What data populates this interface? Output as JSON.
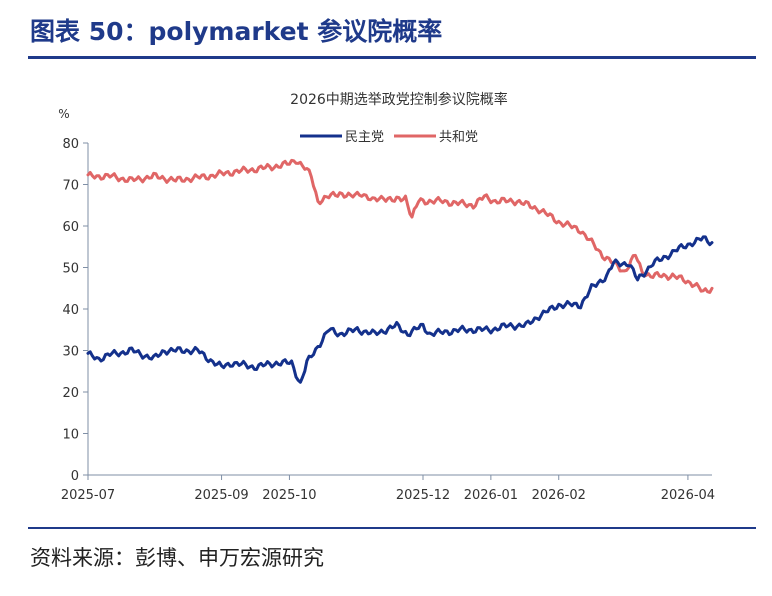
{
  "figure_title": "图表 50：polymarket 参议院概率",
  "source": "资料来源：彭博、申万宏源研究",
  "colors": {
    "democrat": "#14318c",
    "republican": "#e06666",
    "accent": "#1f3a8a",
    "axis": "#7f8fa6"
  },
  "chart_data": {
    "type": "line",
    "title": "2026中期选举政党控制参议院概率",
    "ylabel": "%",
    "ylim": [
      0,
      80
    ],
    "yticks": [
      0,
      10,
      20,
      30,
      40,
      50,
      60,
      70,
      80
    ],
    "xlim": [
      "2025-07-01",
      "2026-04-12"
    ],
    "xticks": [
      "2025-07",
      "2025-09",
      "2025-10",
      "2025-12",
      "2026-01",
      "2026-02",
      "2026-04"
    ],
    "xtick_dates": [
      "2025-07-01",
      "2025-08-31",
      "2025-10-01",
      "2025-12-01",
      "2026-01-01",
      "2026-02-01",
      "2026-04-01"
    ],
    "legend_position": "top-center",
    "grid": false,
    "series": [
      {
        "name": "民主党",
        "color": "#14318c",
        "points": [
          [
            "2025-07-01",
            29
          ],
          [
            "2025-07-06",
            28
          ],
          [
            "2025-07-11",
            29
          ],
          [
            "2025-07-21",
            30
          ],
          [
            "2025-07-31",
            28
          ],
          [
            "2025-08-05",
            30
          ],
          [
            "2025-08-20",
            30
          ],
          [
            "2025-08-25",
            28
          ],
          [
            "2025-08-31",
            26
          ],
          [
            "2025-09-05",
            27
          ],
          [
            "2025-09-15",
            26
          ],
          [
            "2025-09-25",
            27
          ],
          [
            "2025-10-02",
            27
          ],
          [
            "2025-10-06",
            22
          ],
          [
            "2025-10-09",
            27
          ],
          [
            "2025-10-14",
            31
          ],
          [
            "2025-10-19",
            35
          ],
          [
            "2025-10-24",
            34
          ],
          [
            "2025-11-01",
            35
          ],
          [
            "2025-11-09",
            34
          ],
          [
            "2025-11-19",
            36
          ],
          [
            "2025-11-24",
            34
          ],
          [
            "2025-12-01",
            36
          ],
          [
            "2025-12-04",
            34
          ],
          [
            "2025-12-19",
            35
          ],
          [
            "2026-01-01",
            35
          ],
          [
            "2026-01-09",
            36
          ],
          [
            "2026-01-17",
            36
          ],
          [
            "2026-01-22",
            38
          ],
          [
            "2026-02-01",
            41
          ],
          [
            "2026-02-11",
            41
          ],
          [
            "2026-02-16",
            45
          ],
          [
            "2026-02-23",
            48
          ],
          [
            "2026-02-26",
            51
          ],
          [
            "2026-03-05",
            51
          ],
          [
            "2026-03-09",
            47
          ],
          [
            "2026-03-16",
            51
          ],
          [
            "2026-03-20",
            52
          ],
          [
            "2026-03-26",
            54
          ],
          [
            "2026-04-03",
            56
          ],
          [
            "2026-04-08",
            57
          ],
          [
            "2026-04-12",
            56
          ]
        ]
      },
      {
        "name": "共和党",
        "color": "#e06666",
        "points": [
          [
            "2025-07-01",
            72
          ],
          [
            "2025-07-11",
            72
          ],
          [
            "2025-07-21",
            71
          ],
          [
            "2025-07-31",
            72
          ],
          [
            "2025-08-10",
            71
          ],
          [
            "2025-08-25",
            72
          ],
          [
            "2025-09-05",
            73
          ],
          [
            "2025-09-20",
            74
          ],
          [
            "2025-10-01",
            75
          ],
          [
            "2025-10-04",
            76
          ],
          [
            "2025-10-08",
            74
          ],
          [
            "2025-10-11",
            72
          ],
          [
            "2025-10-14",
            66
          ],
          [
            "2025-10-19",
            67
          ],
          [
            "2025-10-24",
            68
          ],
          [
            "2025-10-29",
            67
          ],
          [
            "2025-11-03",
            68
          ],
          [
            "2025-11-08",
            66
          ],
          [
            "2025-11-13",
            67
          ],
          [
            "2025-11-18",
            66
          ],
          [
            "2025-11-23",
            67
          ],
          [
            "2025-11-26",
            62
          ],
          [
            "2025-11-29",
            66
          ],
          [
            "2025-12-09",
            66
          ],
          [
            "2025-12-24",
            65
          ],
          [
            "2025-12-29",
            67
          ],
          [
            "2026-01-03",
            66
          ],
          [
            "2026-01-13",
            66
          ],
          [
            "2026-01-23",
            64
          ],
          [
            "2026-02-01",
            61
          ],
          [
            "2026-02-06",
            60
          ],
          [
            "2026-02-11",
            59
          ],
          [
            "2026-02-16",
            56
          ],
          [
            "2026-02-21",
            53
          ],
          [
            "2026-02-26",
            51
          ],
          [
            "2026-03-03",
            49
          ],
          [
            "2026-03-08",
            53
          ],
          [
            "2026-03-11",
            49
          ],
          [
            "2026-03-15",
            48
          ],
          [
            "2026-03-25",
            48
          ],
          [
            "2026-03-30",
            47
          ],
          [
            "2026-04-04",
            46
          ],
          [
            "2026-04-08",
            44
          ],
          [
            "2026-04-12",
            45
          ]
        ]
      }
    ]
  }
}
